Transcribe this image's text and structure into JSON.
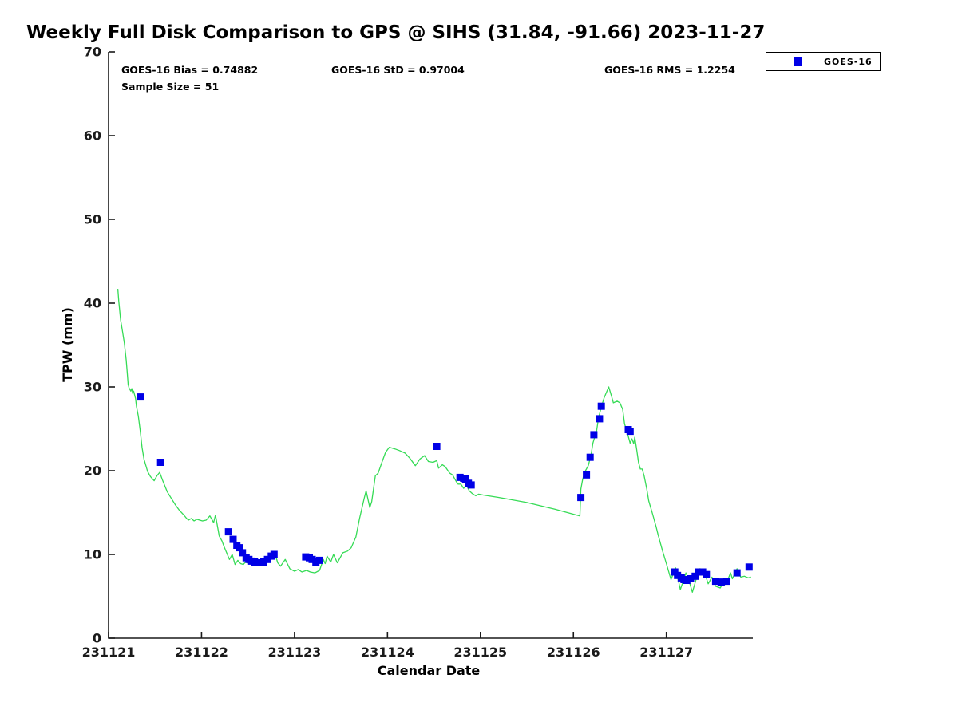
{
  "chart_data": {
    "type": "line",
    "title": "Weekly Full Disk Comparison to GPS @ SIHS (31.84, -91.66) 2023-11-27",
    "xlabel": "Calendar Date",
    "ylabel": "TPW (mm)",
    "x_base": 231121,
    "x_unit": "days since 231121 (x values below are day offsets from the 231121 tick)",
    "xlim": [
      0,
      6.93
    ],
    "ylim": [
      0,
      70
    ],
    "x_ticks": {
      "offsets": [
        0,
        1,
        2,
        3,
        4,
        5,
        6
      ],
      "labels": [
        "231121",
        "231122",
        "231123",
        "231124",
        "231125",
        "231126",
        "231127"
      ]
    },
    "y_ticks": [
      0,
      10,
      20,
      30,
      40,
      50,
      60,
      70
    ],
    "grid": false,
    "axis_color": "#1a1a1a",
    "legend": {
      "position": "top-right",
      "entries": [
        {
          "label": "GOES-16",
          "marker": "square",
          "color": "#0000e6"
        }
      ]
    },
    "annotations": [
      {
        "text": "GOES-16 Bias = 0.74882"
      },
      {
        "text": "GOES-16 StD = 0.97004"
      },
      {
        "text": "GOES-16 RMS = 1.2254"
      },
      {
        "text": "Sample Size = 51"
      }
    ],
    "series": [
      {
        "name": "GPS TPW (line)",
        "type": "line",
        "color": "#35db55",
        "points": [
          [
            0.1,
            41.7
          ],
          [
            0.11,
            40.2
          ],
          [
            0.13,
            38.0
          ],
          [
            0.15,
            36.6
          ],
          [
            0.17,
            35.2
          ],
          [
            0.19,
            33.2
          ],
          [
            0.2,
            31.8
          ],
          [
            0.21,
            30.3
          ],
          [
            0.22,
            29.9
          ],
          [
            0.24,
            29.5
          ],
          [
            0.25,
            29.8
          ],
          [
            0.26,
            29.2
          ],
          [
            0.27,
            29.5
          ],
          [
            0.29,
            28.6
          ],
          [
            0.3,
            27.7
          ],
          [
            0.32,
            26.5
          ],
          [
            0.34,
            24.8
          ],
          [
            0.36,
            22.8
          ],
          [
            0.38,
            21.4
          ],
          [
            0.42,
            19.9
          ],
          [
            0.45,
            19.3
          ],
          [
            0.49,
            18.8
          ],
          [
            0.52,
            19.4
          ],
          [
            0.55,
            19.8
          ],
          [
            0.58,
            18.9
          ],
          [
            0.63,
            17.5
          ],
          [
            0.68,
            16.6
          ],
          [
            0.72,
            15.9
          ],
          [
            0.76,
            15.3
          ],
          [
            0.81,
            14.7
          ],
          [
            0.84,
            14.3
          ],
          [
            0.86,
            14.1
          ],
          [
            0.89,
            14.3
          ],
          [
            0.92,
            14.0
          ],
          [
            0.95,
            14.2
          ],
          [
            0.98,
            14.1
          ],
          [
            1.01,
            14.0
          ],
          [
            1.05,
            14.1
          ],
          [
            1.09,
            14.6
          ],
          [
            1.13,
            13.8
          ],
          [
            1.15,
            14.7
          ],
          [
            1.19,
            12.2
          ],
          [
            1.22,
            11.6
          ],
          [
            1.24,
            11.0
          ],
          [
            1.27,
            10.2
          ],
          [
            1.3,
            9.4
          ],
          [
            1.33,
            10.0
          ],
          [
            1.36,
            8.8
          ],
          [
            1.39,
            9.3
          ],
          [
            1.42,
            8.9
          ],
          [
            1.45,
            8.8
          ],
          [
            1.48,
            9.2
          ],
          [
            1.51,
            8.9
          ],
          [
            1.55,
            9.3
          ],
          [
            1.58,
            9.0
          ],
          [
            1.62,
            9.2
          ],
          [
            1.66,
            9.1
          ],
          [
            1.7,
            9.3
          ],
          [
            1.74,
            9.6
          ],
          [
            1.79,
            10.1
          ],
          [
            1.82,
            9.0
          ],
          [
            1.85,
            8.6
          ],
          [
            1.9,
            9.4
          ],
          [
            1.95,
            8.3
          ],
          [
            2.0,
            8.0
          ],
          [
            2.04,
            8.2
          ],
          [
            2.08,
            7.9
          ],
          [
            2.13,
            8.1
          ],
          [
            2.17,
            7.9
          ],
          [
            2.22,
            7.8
          ],
          [
            2.27,
            8.1
          ],
          [
            2.31,
            9.4
          ],
          [
            2.33,
            8.9
          ],
          [
            2.35,
            9.8
          ],
          [
            2.39,
            9.1
          ],
          [
            2.42,
            10.0
          ],
          [
            2.46,
            9.0
          ],
          [
            2.52,
            10.2
          ],
          [
            2.57,
            10.4
          ],
          [
            2.61,
            10.8
          ],
          [
            2.66,
            12.1
          ],
          [
            2.7,
            14.3
          ],
          [
            2.75,
            16.7
          ],
          [
            2.77,
            17.6
          ],
          [
            2.81,
            15.6
          ],
          [
            2.83,
            16.3
          ],
          [
            2.87,
            19.4
          ],
          [
            2.9,
            19.7
          ],
          [
            2.94,
            21.0
          ],
          [
            2.98,
            22.2
          ],
          [
            3.02,
            22.8
          ],
          [
            3.08,
            22.6
          ],
          [
            3.13,
            22.4
          ],
          [
            3.19,
            22.1
          ],
          [
            3.24,
            21.5
          ],
          [
            3.3,
            20.6
          ],
          [
            3.35,
            21.4
          ],
          [
            3.4,
            21.8
          ],
          [
            3.44,
            21.1
          ],
          [
            3.49,
            21.0
          ],
          [
            3.53,
            21.2
          ],
          [
            3.55,
            20.3
          ],
          [
            3.59,
            20.7
          ],
          [
            3.62,
            20.5
          ],
          [
            3.67,
            19.7
          ],
          [
            3.7,
            19.5
          ],
          [
            3.74,
            18.7
          ],
          [
            3.76,
            18.4
          ],
          [
            3.79,
            18.4
          ],
          [
            3.82,
            17.9
          ],
          [
            3.85,
            18.3
          ],
          [
            3.88,
            17.6
          ],
          [
            3.91,
            17.3
          ],
          [
            3.95,
            17.0
          ],
          [
            3.98,
            17.2
          ],
          [
            4.03,
            17.1
          ],
          [
            4.2,
            16.8
          ],
          [
            4.5,
            16.2
          ],
          [
            4.8,
            15.4
          ],
          [
            5.07,
            14.6
          ],
          [
            5.08,
            17.8
          ],
          [
            5.1,
            19.0
          ],
          [
            5.13,
            20.0
          ],
          [
            5.16,
            20.6
          ],
          [
            5.19,
            21.9
          ],
          [
            5.21,
            23.3
          ],
          [
            5.25,
            24.8
          ],
          [
            5.27,
            26.3
          ],
          [
            5.3,
            27.6
          ],
          [
            5.33,
            28.7
          ],
          [
            5.38,
            30.0
          ],
          [
            5.41,
            28.9
          ],
          [
            5.43,
            28.1
          ],
          [
            5.47,
            28.3
          ],
          [
            5.5,
            28.1
          ],
          [
            5.53,
            27.3
          ],
          [
            5.55,
            25.6
          ],
          [
            5.59,
            24.1
          ],
          [
            5.61,
            23.3
          ],
          [
            5.63,
            23.8
          ],
          [
            5.65,
            23.2
          ],
          [
            5.66,
            24.0
          ],
          [
            5.68,
            22.6
          ],
          [
            5.7,
            21.0
          ],
          [
            5.72,
            20.2
          ],
          [
            5.74,
            20.2
          ],
          [
            5.76,
            19.4
          ],
          [
            5.79,
            17.8
          ],
          [
            5.81,
            16.4
          ],
          [
            5.85,
            14.9
          ],
          [
            5.89,
            13.3
          ],
          [
            5.91,
            12.4
          ],
          [
            5.96,
            10.4
          ],
          [
            6.0,
            8.9
          ],
          [
            6.05,
            7.0
          ],
          [
            6.1,
            8.4
          ],
          [
            6.15,
            5.8
          ],
          [
            6.21,
            7.8
          ],
          [
            6.24,
            7.0
          ],
          [
            6.28,
            5.5
          ],
          [
            6.33,
            7.4
          ],
          [
            6.36,
            8.3
          ],
          [
            6.4,
            8.2
          ],
          [
            6.45,
            6.5
          ],
          [
            6.49,
            7.3
          ],
          [
            6.53,
            6.2
          ],
          [
            6.58,
            6.0
          ],
          [
            6.62,
            6.8
          ],
          [
            6.64,
            6.4
          ],
          [
            6.69,
            7.8
          ],
          [
            6.71,
            7.1
          ],
          [
            6.76,
            8.3
          ],
          [
            6.8,
            7.3
          ],
          [
            6.84,
            7.4
          ],
          [
            6.88,
            7.2
          ],
          [
            6.91,
            7.3
          ]
        ]
      },
      {
        "name": "GOES-16",
        "type": "scatter",
        "marker": "square",
        "marker_size": 9,
        "color": "#0000e6",
        "points": [
          [
            0.34,
            28.8
          ],
          [
            0.56,
            21.0
          ],
          [
            1.29,
            12.7
          ],
          [
            1.34,
            11.8
          ],
          [
            1.38,
            11.1
          ],
          [
            1.41,
            10.8
          ],
          [
            1.44,
            10.2
          ],
          [
            1.48,
            9.6
          ],
          [
            1.51,
            9.4
          ],
          [
            1.54,
            9.2
          ],
          [
            1.57,
            9.1
          ],
          [
            1.61,
            9.0
          ],
          [
            1.64,
            9.0
          ],
          [
            1.67,
            9.1
          ],
          [
            1.71,
            9.4
          ],
          [
            1.75,
            9.8
          ],
          [
            1.78,
            10.0
          ],
          [
            2.12,
            9.7
          ],
          [
            2.16,
            9.6
          ],
          [
            2.19,
            9.4
          ],
          [
            2.23,
            9.1
          ],
          [
            2.27,
            9.3
          ],
          [
            3.53,
            22.9
          ],
          [
            3.78,
            19.2
          ],
          [
            3.82,
            19.1
          ],
          [
            3.84,
            19.0
          ],
          [
            3.87,
            18.5
          ],
          [
            3.9,
            18.3
          ],
          [
            5.08,
            16.8
          ],
          [
            5.14,
            19.5
          ],
          [
            5.18,
            21.6
          ],
          [
            5.22,
            24.3
          ],
          [
            5.28,
            26.2
          ],
          [
            5.3,
            27.7
          ],
          [
            5.59,
            24.9
          ],
          [
            5.61,
            24.7
          ],
          [
            6.09,
            7.9
          ],
          [
            6.12,
            7.5
          ],
          [
            6.16,
            7.2
          ],
          [
            6.19,
            7.0
          ],
          [
            6.22,
            6.9
          ],
          [
            6.26,
            7.1
          ],
          [
            6.31,
            7.4
          ],
          [
            6.35,
            7.9
          ],
          [
            6.39,
            7.9
          ],
          [
            6.43,
            7.6
          ],
          [
            6.53,
            6.8
          ],
          [
            6.59,
            6.7
          ],
          [
            6.65,
            6.8
          ],
          [
            6.76,
            7.8
          ],
          [
            6.89,
            8.5
          ]
        ]
      }
    ]
  }
}
